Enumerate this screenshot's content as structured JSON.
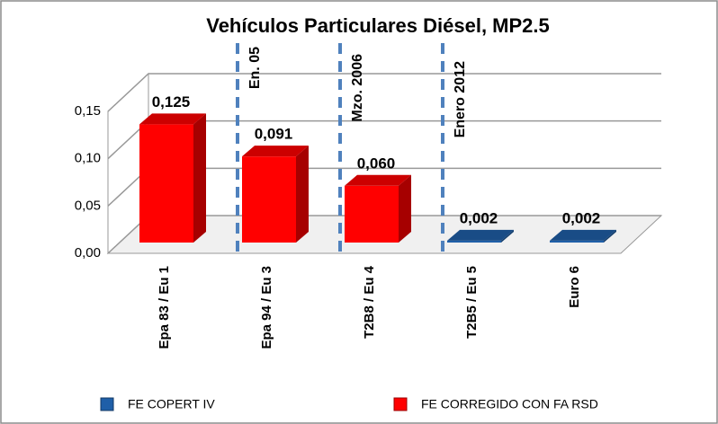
{
  "chart_data": {
    "type": "bar3d",
    "title": "Vehículos Particulares  Diésel, MP2.5",
    "categories": [
      "Epa 83 / Eu 1",
      "Epa 94 / Eu 3",
      "T2B8 / Eu 4",
      "T2B5 / Eu 5",
      "Euro 6"
    ],
    "series": [
      {
        "name": "FE COPERT IV",
        "color": "#1f5fa8",
        "values": [
          null,
          null,
          null,
          0.002,
          0.002
        ],
        "value_labels": [
          null,
          null,
          null,
          "0,002",
          "0,002"
        ]
      },
      {
        "name": "FE CORREGIDO CON FA RSD",
        "color": "#ff0000",
        "values": [
          0.125,
          0.091,
          0.06,
          null,
          null
        ],
        "value_labels": [
          "0,125",
          "0,091",
          "0,060",
          null,
          null
        ]
      }
    ],
    "ylim": [
      0,
      0.15
    ],
    "yticks": [
      {
        "value": 0,
        "label": "0,00"
      },
      {
        "value": 0.05,
        "label": "0,05"
      },
      {
        "value": 0.1,
        "label": "0,10"
      },
      {
        "value": 0.15,
        "label": "0,15"
      }
    ],
    "grid": true,
    "annotations": [
      {
        "text": "En.  05",
        "after": 0
      },
      {
        "text": "Mzo. 2006",
        "after": 1
      },
      {
        "text": "Enero 2012",
        "after": 2
      }
    ],
    "legend": "bottom"
  }
}
